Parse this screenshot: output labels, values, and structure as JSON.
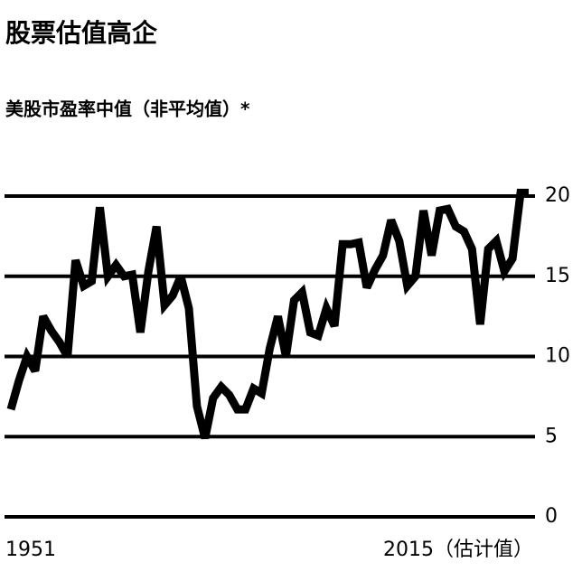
{
  "chart_data": {
    "type": "line",
    "title": "股票估值高企",
    "subtitle": "美股市盈率中值（非平均值）*",
    "x": [
      1951,
      1952,
      1953,
      1954,
      1955,
      1956,
      1957,
      1958,
      1959,
      1960,
      1961,
      1962,
      1963,
      1964,
      1965,
      1966,
      1967,
      1968,
      1969,
      1970,
      1971,
      1972,
      1973,
      1974,
      1975,
      1976,
      1977,
      1978,
      1979,
      1980,
      1981,
      1982,
      1983,
      1984,
      1985,
      1986,
      1987,
      1988,
      1989,
      1990,
      1991,
      1992,
      1993,
      1994,
      1995,
      1996,
      1997,
      1998,
      1999,
      2000,
      2001,
      2002,
      2003,
      2004,
      2005,
      2006,
      2007,
      2008,
      2009,
      2010,
      2011,
      2012,
      2013,
      2014,
      2015
    ],
    "series": [
      {
        "color": "#000000",
        "values": [
          6.7,
          8.5,
          10,
          9.1,
          12.5,
          11.6,
          10.9,
          10,
          16,
          14.4,
          14.7,
          19.3,
          15,
          15.7,
          15,
          15.1,
          11.5,
          15.3,
          18.1,
          13.2,
          13.8,
          15,
          13,
          6.9,
          4.9,
          7.4,
          8.1,
          7.6,
          6.7,
          6.7,
          8,
          7.7,
          10.5,
          12.5,
          10,
          13.5,
          14,
          11.5,
          11.3,
          13,
          11.9,
          17,
          17,
          17.1,
          14.3,
          15.4,
          16.3,
          18.5,
          17.2,
          14.4,
          15,
          19.1,
          16.3,
          19.1,
          19.2,
          18.1,
          17.8,
          16.7,
          12,
          16.7,
          17.2,
          15.3,
          16.1,
          20.2,
          20.2
        ]
      }
    ],
    "xlim": [
      1951,
      2015
    ],
    "xticks": [
      1951,
      {
        "value": 2015,
        "label": "2015（估计值）"
      }
    ],
    "ylim": [
      0,
      20
    ],
    "yticks": [
      0,
      5,
      10,
      15,
      20
    ],
    "grid": true
  }
}
